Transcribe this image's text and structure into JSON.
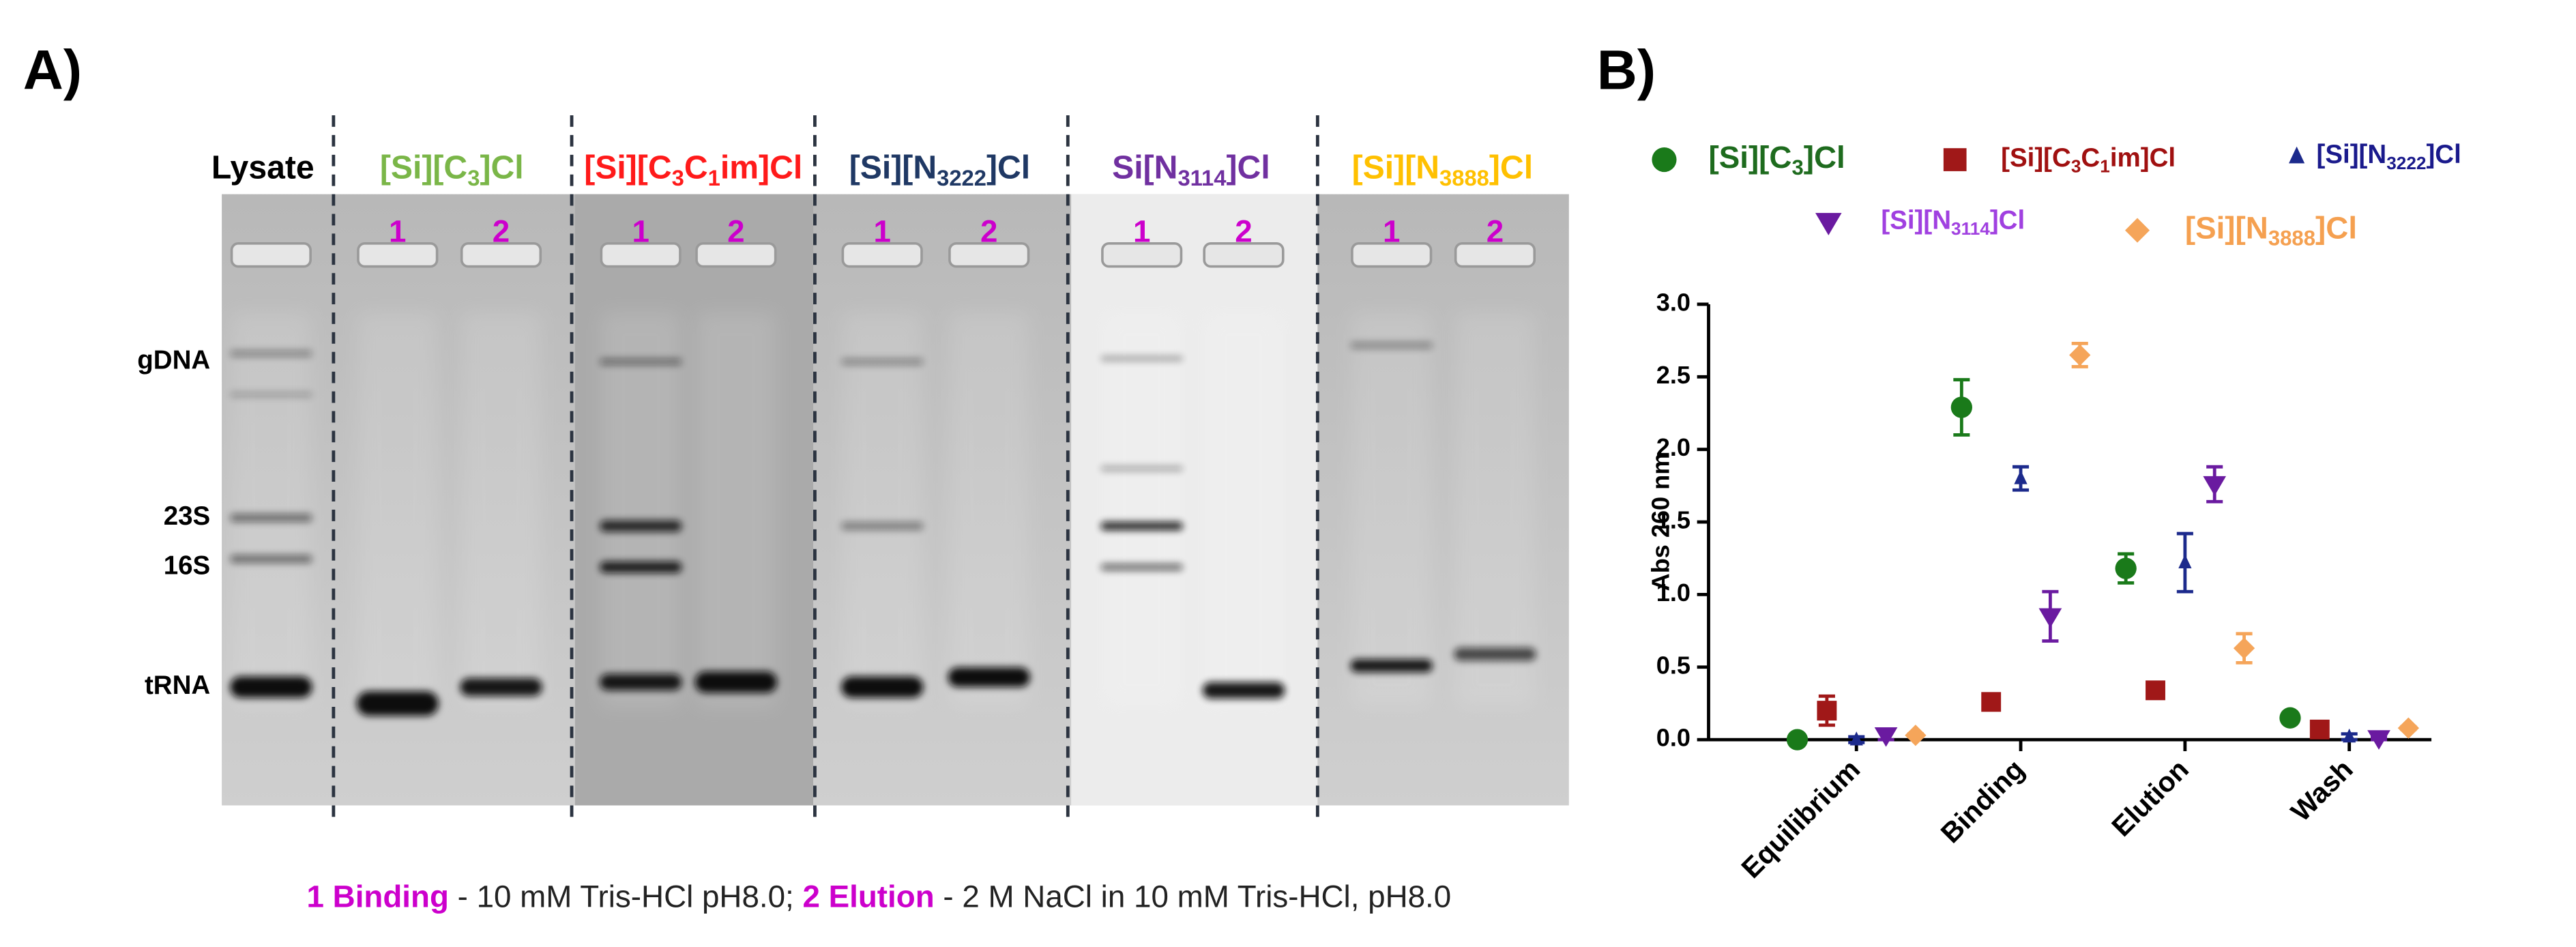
{
  "panel_a": {
    "label": "A)",
    "lanes": [
      {
        "name": "Lysate",
        "color": "#000000"
      },
      {
        "name": "[Si][C3]Cl",
        "color": "#7ab648"
      },
      {
        "name": "[Si][C3C1im]Cl",
        "color": "#ff1a1a"
      },
      {
        "name": "[Si][N3222]Cl",
        "color": "#1f3864"
      },
      {
        "name": "Si[N3114]Cl",
        "color": "#7030a0"
      },
      {
        "name": "[Si][N3888]Cl",
        "color": "#ffc000"
      }
    ],
    "lane_numbers": [
      "1",
      "2"
    ],
    "lane_number_color": "#cc00cc",
    "band_labels": [
      "gDNA",
      "23S",
      "16S",
      "tRNA"
    ],
    "caption": [
      {
        "text": "1 Binding",
        "color": "#cc00cc"
      },
      {
        "text": " - 10 mM Tris-HCl pH8.0; ",
        "color": "#222222"
      },
      {
        "text": "2 Elution",
        "color": "#cc00cc"
      },
      {
        "text": " - 2 M NaCl in 10 mM Tris-HCl, pH8.0",
        "color": "#222222"
      }
    ]
  },
  "chart_data": {
    "type": "scatter",
    "title": "B)",
    "ylabel": "Abs 260 nm",
    "categories": [
      "Equilibrium",
      "Binding",
      "Elution",
      "Wash"
    ],
    "ylim": [
      0,
      3
    ],
    "yticks": [
      {
        "value": 0,
        "label": "0.0"
      },
      0.5,
      {
        "value": 1,
        "label": "1.0"
      },
      1.5,
      {
        "value": 2,
        "label": "2.0"
      },
      2.5,
      {
        "value": 3,
        "label": "3.0"
      }
    ],
    "series": [
      {
        "name": "[Si][C3]Cl",
        "color": "#1a7a1a",
        "marker": "circle",
        "values": [
          0.0,
          2.29,
          1.18,
          0.15
        ],
        "errors": [
          0.01,
          0.19,
          0.1,
          0.02
        ]
      },
      {
        "name": "[Si][C3C1im]Cl",
        "color": "#a01818",
        "marker": "square",
        "values": [
          0.2,
          0.26,
          0.34,
          0.07
        ],
        "errors": [
          0.1,
          0.02,
          0.03,
          0.02
        ]
      },
      {
        "name": "[Si][N3222]Cl",
        "color": "#1c2a8c",
        "marker": "triangle",
        "values": [
          0.0,
          1.8,
          1.22,
          0.02
        ],
        "errors": [
          0.02,
          0.08,
          0.2,
          0.02
        ]
      },
      {
        "name": "[Si][N3114]Cl",
        "color": "#6a1aa0",
        "marker": "triangle-down",
        "values": [
          0.03,
          0.85,
          1.76,
          0.01
        ],
        "errors": [
          0.03,
          0.17,
          0.12,
          0.01
        ]
      },
      {
        "name": "[Si][N3888]Cl",
        "color": "#f5a55a",
        "marker": "diamond",
        "values": [
          0.03,
          2.65,
          0.63,
          0.08
        ],
        "errors": [
          0.01,
          0.08,
          0.1,
          0.01
        ]
      }
    ]
  }
}
